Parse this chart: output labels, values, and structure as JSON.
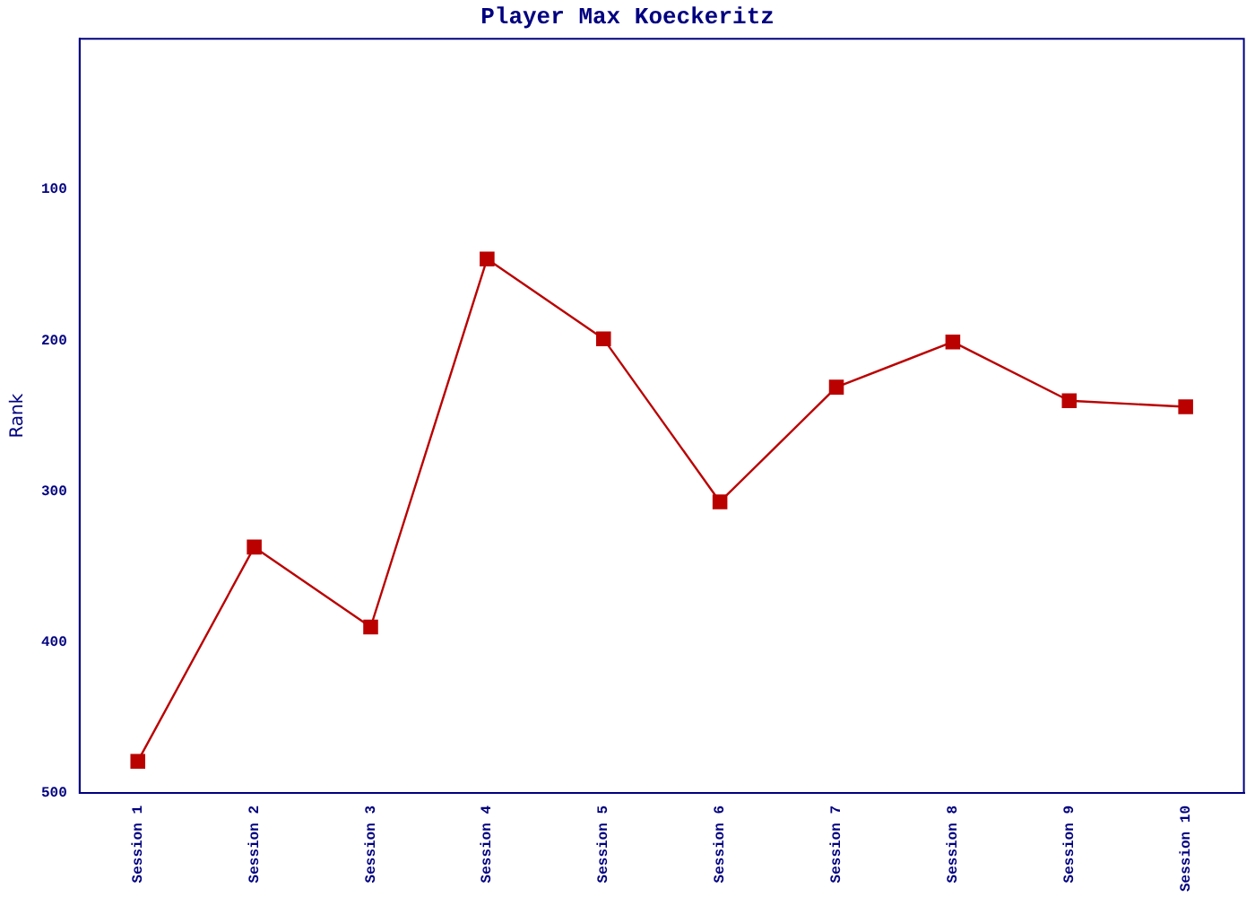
{
  "chart_data": {
    "type": "line",
    "title": "Player Max Koeckeritz",
    "ylabel": "Rank",
    "categories": [
      "Session 1",
      "Session 2",
      "Session 3",
      "Session 4",
      "Session 5",
      "Session 6",
      "Session 7",
      "Session 8",
      "Session 9",
      "Session 10"
    ],
    "series": [
      {
        "color": "#bb0000",
        "values": [
          479,
          337,
          390,
          146,
          199,
          307,
          231,
          201,
          240,
          244
        ]
      }
    ],
    "ylim": [
      500,
      0
    ],
    "yticks": [
      100,
      200,
      300,
      400,
      500
    ],
    "grid": false,
    "legend": false,
    "marker": "square",
    "line_style": "solid"
  }
}
